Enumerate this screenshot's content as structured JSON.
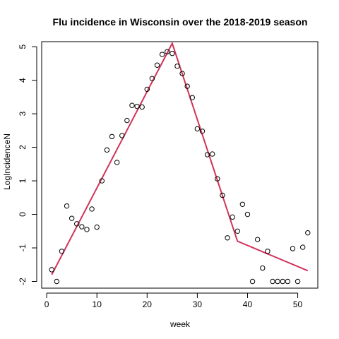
{
  "chart_data": {
    "type": "scatter",
    "title": "Flu incidence in Wisconsin over the 2018-2019 season",
    "xlabel": "week",
    "ylabel": "LogIncidenceN",
    "xlim": [
      -1,
      54
    ],
    "ylim": [
      -2.2,
      5.15
    ],
    "xticks": [
      0,
      10,
      20,
      30,
      40,
      50
    ],
    "yticks": [
      -2,
      -1,
      0,
      1,
      2,
      3,
      4,
      5
    ],
    "grid": false,
    "legend": "none",
    "points": {
      "x": [
        1,
        2,
        3,
        4,
        5,
        6,
        7,
        8,
        9,
        10,
        11,
        12,
        13,
        14,
        15,
        16,
        17,
        18,
        19,
        20,
        21,
        22,
        23,
        24,
        25,
        26,
        27,
        28,
        29,
        30,
        31,
        32,
        33,
        34,
        35,
        36,
        37,
        38,
        39,
        40,
        41,
        42,
        43,
        44,
        45,
        46,
        47,
        48,
        49,
        50,
        51,
        52
      ],
      "y": [
        -1.65,
        -2.0,
        -1.1,
        0.25,
        -0.12,
        -0.28,
        -0.37,
        -0.45,
        0.16,
        -0.38,
        1.0,
        1.92,
        2.32,
        1.55,
        2.35,
        2.8,
        3.25,
        3.22,
        3.2,
        3.73,
        4.05,
        4.45,
        4.77,
        4.85,
        4.8,
        4.42,
        4.2,
        3.82,
        3.48,
        2.55,
        2.48,
        1.78,
        1.8,
        1.06,
        0.57,
        -0.7,
        -0.08,
        -0.5,
        0.3,
        0.0,
        -2.0,
        -0.75,
        -1.6,
        -1.1,
        -2.0,
        -2.0,
        -2.0,
        -2.0,
        -1.02,
        -2.0,
        -0.98,
        -0.55
      ]
    },
    "fit_line": {
      "x": [
        1,
        25,
        38,
        52
      ],
      "y": [
        -1.8,
        5.1,
        -0.8,
        -1.68
      ]
    },
    "colors": {
      "fit_line": "#d1335a",
      "points": "#000000",
      "axes": "#000000",
      "background": "#ffffff"
    }
  }
}
